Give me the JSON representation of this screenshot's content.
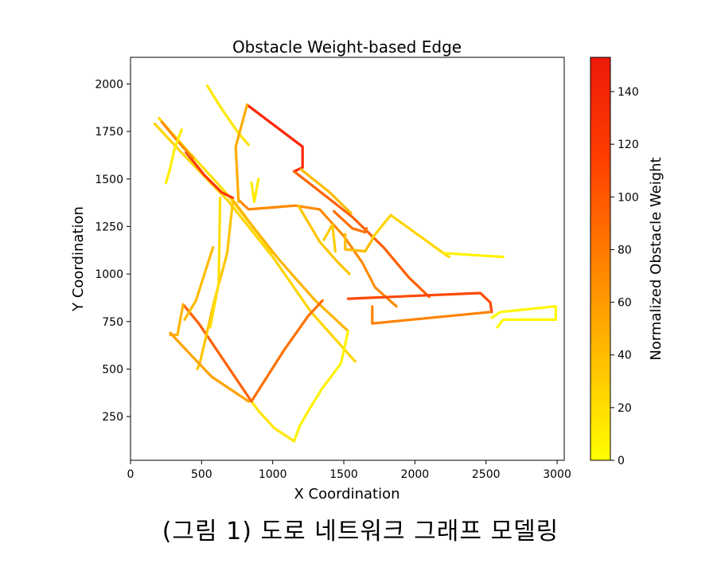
{
  "chart_data": {
    "type": "line",
    "title": "Obstacle Weight-based Edge",
    "xlabel": "X Coordination",
    "ylabel": "Y Coordination",
    "xlim": [
      0,
      3050
    ],
    "ylim": [
      20,
      2140
    ],
    "xticks": [
      0,
      500,
      1000,
      1500,
      2000,
      2500,
      3000
    ],
    "yticks": [
      250,
      500,
      750,
      1000,
      1250,
      1500,
      1750,
      2000
    ],
    "grid": false,
    "colorbar": {
      "label": "Normalized Obstacle Weight",
      "range": [
        0,
        153
      ],
      "ticks": [
        0,
        20,
        40,
        60,
        80,
        100,
        120,
        140
      ],
      "colormap": [
        "#ffff00",
        "#ffbf00",
        "#ff7f00",
        "#ff3f00",
        "#ff0000"
      ]
    },
    "series": [
      {
        "points": [
          [
            170,
            1790
          ],
          [
            370,
            1630
          ],
          [
            680,
            1390
          ],
          [
            1000,
            1090
          ],
          [
            1270,
            800
          ],
          [
            1580,
            540
          ]
        ],
        "weight": 25
      },
      {
        "points": [
          [
            200,
            1820
          ],
          [
            400,
            1650
          ],
          [
            680,
            1420
          ],
          [
            1000,
            1110
          ]
        ],
        "weight": 18
      },
      {
        "points": [
          [
            390,
            1640
          ],
          [
            520,
            1520
          ],
          [
            640,
            1430
          ],
          [
            720,
            1400
          ]
        ],
        "weight": 120
      },
      {
        "points": [
          [
            220,
            1800
          ],
          [
            330,
            1700
          ],
          [
            440,
            1610
          ]
        ],
        "weight": 70
      },
      {
        "points": [
          [
            540,
            1990
          ],
          [
            640,
            1870
          ],
          [
            760,
            1740
          ],
          [
            830,
            1680
          ]
        ],
        "weight": 15
      },
      {
        "points": [
          [
            360,
            1760
          ],
          [
            310,
            1660
          ],
          [
            280,
            1560
          ],
          [
            250,
            1480
          ]
        ],
        "weight": 10
      },
      {
        "points": [
          [
            730,
            1380
          ],
          [
            860,
            1250
          ],
          [
            1040,
            1080
          ],
          [
            1180,
            960
          ],
          [
            1300,
            860
          ],
          [
            1530,
            700
          ]
        ],
        "weight": 45
      },
      {
        "points": [
          [
            760,
            1390
          ],
          [
            830,
            1340
          ],
          [
            990,
            1350
          ],
          [
            1160,
            1360
          ],
          [
            1330,
            1340
          ],
          [
            1500,
            1200
          ],
          [
            1630,
            1060
          ],
          [
            1720,
            930
          ],
          [
            1870,
            830
          ]
        ],
        "weight": 70
      },
      {
        "points": [
          [
            820,
            1890
          ],
          [
            1210,
            1670
          ],
          [
            1210,
            1560
          ],
          [
            1150,
            1540
          ]
        ],
        "weight": 130
      },
      {
        "points": [
          [
            820,
            1890
          ],
          [
            740,
            1670
          ],
          [
            760,
            1380
          ]
        ],
        "weight": 50
      },
      {
        "points": [
          [
            1150,
            1540
          ],
          [
            1390,
            1400
          ],
          [
            1560,
            1300
          ],
          [
            1780,
            1140
          ],
          [
            1960,
            980
          ],
          [
            2100,
            880
          ]
        ],
        "weight": 95
      },
      {
        "points": [
          [
            1200,
            1550
          ],
          [
            1400,
            1430
          ],
          [
            1550,
            1320
          ]
        ],
        "weight": 40
      },
      {
        "points": [
          [
            1180,
            1360
          ],
          [
            1330,
            1170
          ],
          [
            1460,
            1060
          ],
          [
            1540,
            1000
          ]
        ],
        "weight": 35
      },
      {
        "points": [
          [
            1430,
            1330
          ],
          [
            1560,
            1240
          ],
          [
            1650,
            1220
          ],
          [
            1660,
            1240
          ]
        ],
        "weight": 85
      },
      {
        "points": [
          [
            1510,
            1210
          ],
          [
            1510,
            1130
          ],
          [
            1650,
            1120
          ],
          [
            1700,
            1180
          ]
        ],
        "weight": 40
      },
      {
        "points": [
          [
            1700,
            1190
          ],
          [
            1830,
            1310
          ],
          [
            2200,
            1110
          ],
          [
            2240,
            1090
          ]
        ],
        "weight": 25
      },
      {
        "points": [
          [
            2200,
            1110
          ],
          [
            2620,
            1090
          ]
        ],
        "weight": 8
      },
      {
        "points": [
          [
            1530,
            870
          ],
          [
            2460,
            900
          ],
          [
            2530,
            850
          ],
          [
            2540,
            800
          ]
        ],
        "weight": 110
      },
      {
        "points": [
          [
            1700,
            830
          ],
          [
            1700,
            740
          ],
          [
            2530,
            800
          ]
        ],
        "weight": 75
      },
      {
        "points": [
          [
            2540,
            770
          ],
          [
            2600,
            800
          ],
          [
            2990,
            830
          ],
          [
            2990,
            760
          ],
          [
            2620,
            760
          ],
          [
            2580,
            720
          ]
        ],
        "weight": 5
      },
      {
        "points": [
          [
            1530,
            700
          ],
          [
            1510,
            630
          ],
          [
            1480,
            530
          ],
          [
            1350,
            400
          ],
          [
            1250,
            280
          ],
          [
            1190,
            200
          ],
          [
            1150,
            120
          ]
        ],
        "weight": 8
      },
      {
        "points": [
          [
            1150,
            120
          ],
          [
            1010,
            190
          ],
          [
            900,
            280
          ],
          [
            850,
            330
          ]
        ],
        "weight": 15
      },
      {
        "points": [
          [
            850,
            330
          ],
          [
            1080,
            600
          ],
          [
            1250,
            780
          ],
          [
            1350,
            860
          ]
        ],
        "weight": 85
      },
      {
        "points": [
          [
            850,
            330
          ],
          [
            580,
            630
          ],
          [
            480,
            740
          ],
          [
            370,
            840
          ]
        ],
        "weight": 95
      },
      {
        "points": [
          [
            370,
            840
          ],
          [
            330,
            680
          ],
          [
            280,
            680
          ]
        ],
        "weight": 45
      },
      {
        "points": [
          [
            720,
            1390
          ],
          [
            680,
            1110
          ],
          [
            590,
            860
          ],
          [
            490,
            540
          ],
          [
            470,
            500
          ]
        ],
        "weight": 35
      },
      {
        "points": [
          [
            630,
            1400
          ],
          [
            620,
            950
          ],
          [
            560,
            720
          ]
        ],
        "weight": 20
      },
      {
        "points": [
          [
            280,
            690
          ],
          [
            430,
            570
          ],
          [
            570,
            460
          ],
          [
            830,
            330
          ]
        ],
        "weight": 55
      },
      {
        "points": [
          [
            580,
            1140
          ],
          [
            460,
            860
          ],
          [
            380,
            760
          ]
        ],
        "weight": 40
      },
      {
        "points": [
          [
            850,
            1480
          ],
          [
            870,
            1380
          ],
          [
            900,
            1500
          ]
        ],
        "weight": 12
      },
      {
        "points": [
          [
            1360,
            1180
          ],
          [
            1420,
            1260
          ],
          [
            1440,
            1120
          ]
        ],
        "weight": 30
      }
    ]
  },
  "caption": "(그림 1) 도로 네트워크 그래프 모델링"
}
